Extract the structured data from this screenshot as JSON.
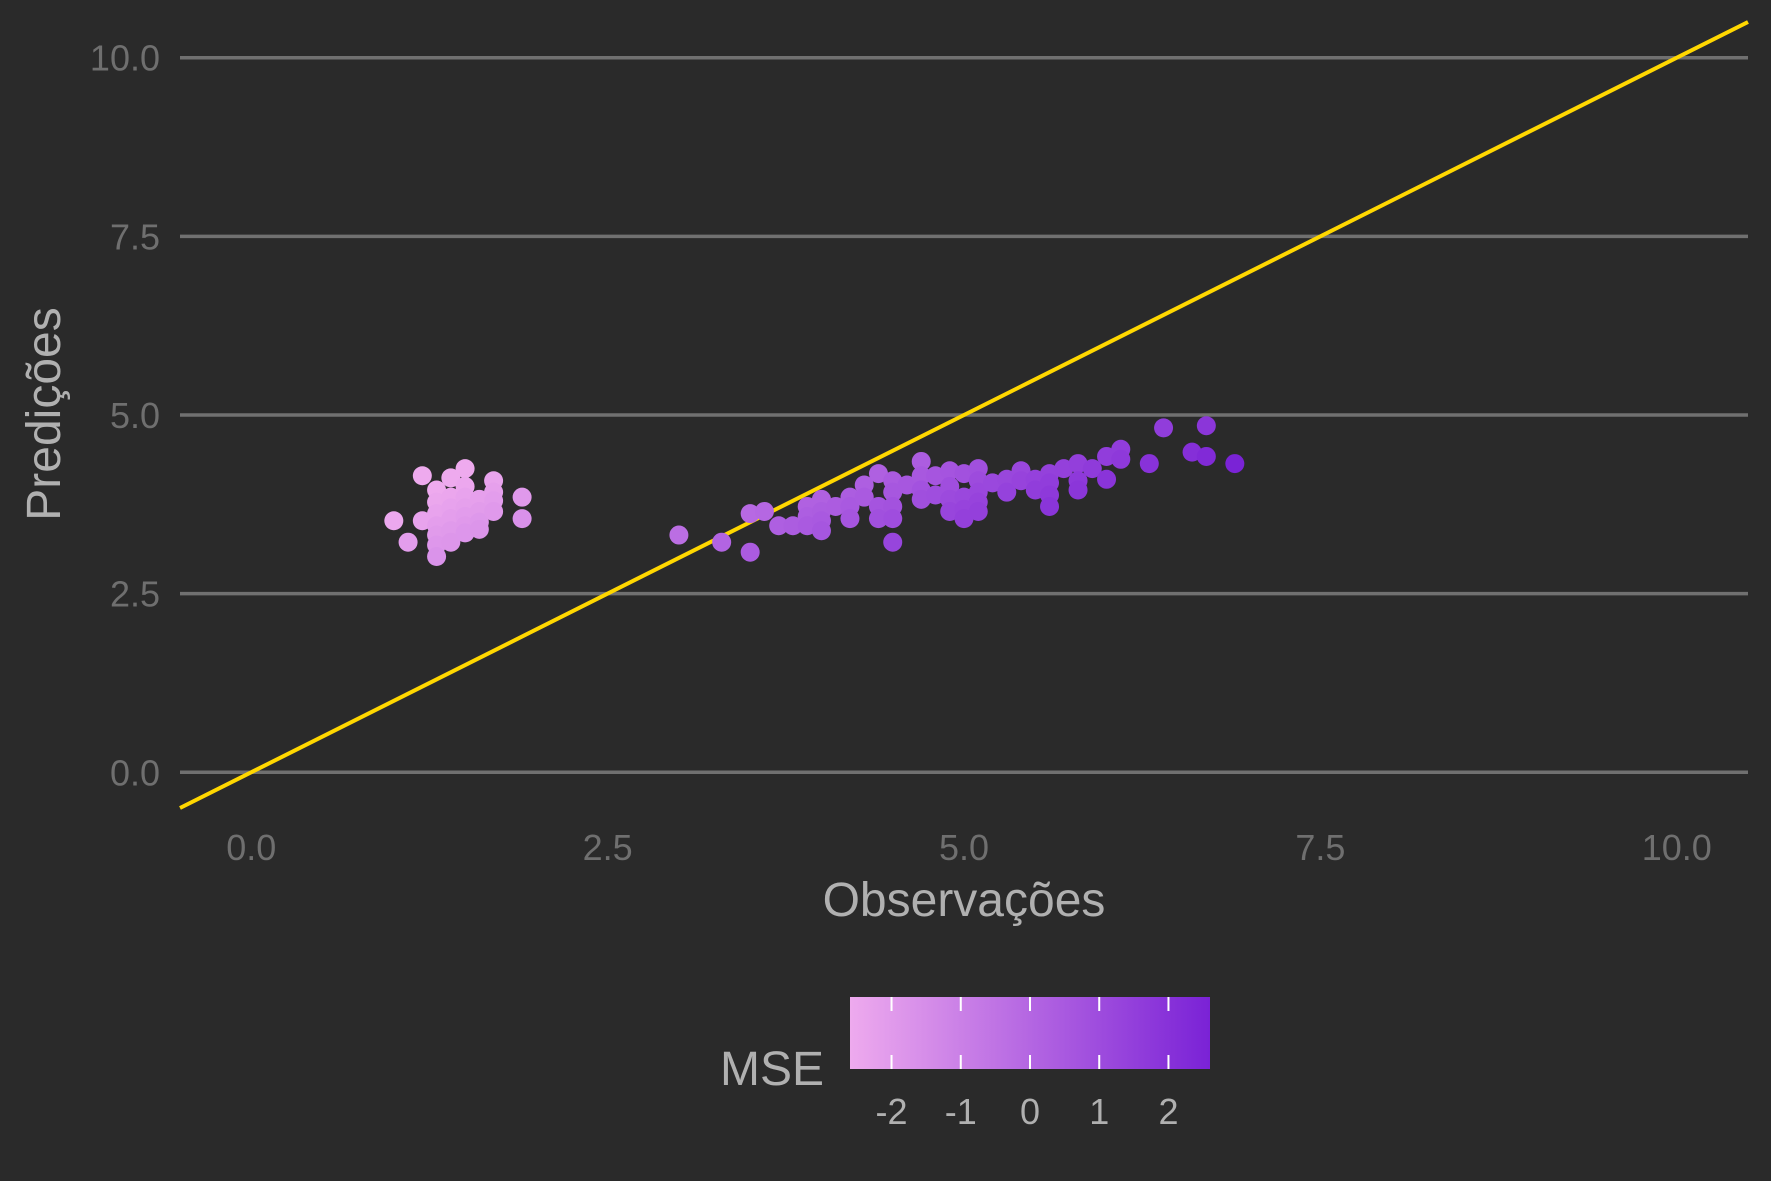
{
  "chart_data": {
    "type": "scatter",
    "xlabel": "Observações",
    "ylabel": "Predições",
    "xlim": [
      -0.5,
      10.5
    ],
    "ylim": [
      -0.5,
      10.5
    ],
    "x_ticks": [
      "0.0",
      "2.5",
      "5.0",
      "7.5",
      "10.0"
    ],
    "y_ticks": [
      "0.0",
      "2.5",
      "5.0",
      "7.5",
      "10.0"
    ],
    "grid": "horizontal major",
    "reference_line": {
      "type": "identity",
      "slope": 1,
      "intercept": 0,
      "color": "#ffd700"
    },
    "legend": {
      "title": "MSE",
      "position": "bottom",
      "type": "colorbar",
      "range": [
        -2.6,
        2.6
      ],
      "ticks": [
        "-2",
        "-1",
        "0",
        "1",
        "2"
      ],
      "low_color": "#eeaaee",
      "high_color": "#7a22d6"
    },
    "points": [
      {
        "x": 1.0,
        "y": 3.52
      },
      {
        "x": 1.1,
        "y": 3.22
      },
      {
        "x": 1.2,
        "y": 4.15
      },
      {
        "x": 1.2,
        "y": 3.52
      },
      {
        "x": 1.3,
        "y": 3.95
      },
      {
        "x": 1.3,
        "y": 3.78
      },
      {
        "x": 1.3,
        "y": 3.62
      },
      {
        "x": 1.3,
        "y": 3.45
      },
      {
        "x": 1.3,
        "y": 3.32
      },
      {
        "x": 1.3,
        "y": 3.18
      },
      {
        "x": 1.3,
        "y": 3.02
      },
      {
        "x": 1.4,
        "y": 4.12
      },
      {
        "x": 1.4,
        "y": 3.85
      },
      {
        "x": 1.4,
        "y": 3.7
      },
      {
        "x": 1.4,
        "y": 3.55
      },
      {
        "x": 1.4,
        "y": 3.38
      },
      {
        "x": 1.4,
        "y": 3.22
      },
      {
        "x": 1.5,
        "y": 4.25
      },
      {
        "x": 1.5,
        "y": 4.0
      },
      {
        "x": 1.5,
        "y": 3.85
      },
      {
        "x": 1.5,
        "y": 3.7
      },
      {
        "x": 1.5,
        "y": 3.58
      },
      {
        "x": 1.5,
        "y": 3.45
      },
      {
        "x": 1.5,
        "y": 3.35
      },
      {
        "x": 1.6,
        "y": 3.82
      },
      {
        "x": 1.6,
        "y": 3.65
      },
      {
        "x": 1.6,
        "y": 3.5
      },
      {
        "x": 1.6,
        "y": 3.4
      },
      {
        "x": 1.7,
        "y": 4.08
      },
      {
        "x": 1.7,
        "y": 3.92
      },
      {
        "x": 1.7,
        "y": 3.8
      },
      {
        "x": 1.7,
        "y": 3.65
      },
      {
        "x": 1.9,
        "y": 3.85
      },
      {
        "x": 1.9,
        "y": 3.55
      },
      {
        "x": 3.0,
        "y": 3.32
      },
      {
        "x": 3.3,
        "y": 3.22
      },
      {
        "x": 3.5,
        "y": 3.62
      },
      {
        "x": 3.5,
        "y": 3.08
      },
      {
        "x": 3.6,
        "y": 3.65
      },
      {
        "x": 3.7,
        "y": 3.45
      },
      {
        "x": 3.8,
        "y": 3.45
      },
      {
        "x": 3.9,
        "y": 3.72
      },
      {
        "x": 3.9,
        "y": 3.58
      },
      {
        "x": 3.9,
        "y": 3.45
      },
      {
        "x": 4.0,
        "y": 3.82
      },
      {
        "x": 4.0,
        "y": 3.65
      },
      {
        "x": 4.0,
        "y": 3.52
      },
      {
        "x": 4.0,
        "y": 3.38
      },
      {
        "x": 4.1,
        "y": 3.72
      },
      {
        "x": 4.2,
        "y": 3.85
      },
      {
        "x": 4.2,
        "y": 3.72
      },
      {
        "x": 4.2,
        "y": 3.55
      },
      {
        "x": 4.3,
        "y": 4.02
      },
      {
        "x": 4.3,
        "y": 3.85
      },
      {
        "x": 4.4,
        "y": 4.18
      },
      {
        "x": 4.4,
        "y": 3.72
      },
      {
        "x": 4.4,
        "y": 3.55
      },
      {
        "x": 4.5,
        "y": 4.08
      },
      {
        "x": 4.5,
        "y": 3.92
      },
      {
        "x": 4.5,
        "y": 3.72
      },
      {
        "x": 4.5,
        "y": 3.55
      },
      {
        "x": 4.5,
        "y": 3.22
      },
      {
        "x": 4.6,
        "y": 4.02
      },
      {
        "x": 4.7,
        "y": 4.35
      },
      {
        "x": 4.7,
        "y": 4.15
      },
      {
        "x": 4.7,
        "y": 3.95
      },
      {
        "x": 4.7,
        "y": 3.82
      },
      {
        "x": 4.8,
        "y": 4.15
      },
      {
        "x": 4.8,
        "y": 3.88
      },
      {
        "x": 4.9,
        "y": 4.22
      },
      {
        "x": 4.9,
        "y": 4.0
      },
      {
        "x": 4.9,
        "y": 3.82
      },
      {
        "x": 4.9,
        "y": 3.65
      },
      {
        "x": 5.0,
        "y": 4.18
      },
      {
        "x": 5.0,
        "y": 3.85
      },
      {
        "x": 5.0,
        "y": 3.68
      },
      {
        "x": 5.0,
        "y": 3.55
      },
      {
        "x": 5.1,
        "y": 4.25
      },
      {
        "x": 5.1,
        "y": 4.08
      },
      {
        "x": 5.1,
        "y": 3.92
      },
      {
        "x": 5.1,
        "y": 3.78
      },
      {
        "x": 5.1,
        "y": 3.65
      },
      {
        "x": 5.2,
        "y": 4.05
      },
      {
        "x": 5.3,
        "y": 4.1
      },
      {
        "x": 5.3,
        "y": 3.92
      },
      {
        "x": 5.4,
        "y": 4.22
      },
      {
        "x": 5.4,
        "y": 4.08
      },
      {
        "x": 5.5,
        "y": 4.1
      },
      {
        "x": 5.5,
        "y": 3.95
      },
      {
        "x": 5.6,
        "y": 4.18
      },
      {
        "x": 5.6,
        "y": 4.05
      },
      {
        "x": 5.6,
        "y": 3.88
      },
      {
        "x": 5.6,
        "y": 3.72
      },
      {
        "x": 5.7,
        "y": 4.25
      },
      {
        "x": 5.8,
        "y": 4.32
      },
      {
        "x": 5.8,
        "y": 4.08
      },
      {
        "x": 5.8,
        "y": 3.95
      },
      {
        "x": 5.9,
        "y": 4.25
      },
      {
        "x": 6.0,
        "y": 4.42
      },
      {
        "x": 6.0,
        "y": 4.1
      },
      {
        "x": 6.1,
        "y": 4.52
      },
      {
        "x": 6.1,
        "y": 4.38
      },
      {
        "x": 6.3,
        "y": 4.32
      },
      {
        "x": 6.4,
        "y": 4.82
      },
      {
        "x": 6.6,
        "y": 4.48
      },
      {
        "x": 6.7,
        "y": 4.85
      },
      {
        "x": 6.7,
        "y": 4.42
      },
      {
        "x": 6.9,
        "y": 4.32
      }
    ]
  }
}
